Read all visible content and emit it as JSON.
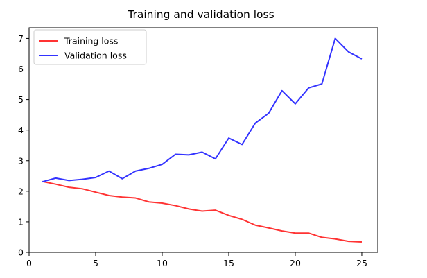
{
  "chart_data": {
    "type": "line",
    "title": "Training and validation loss",
    "xlabel": "",
    "ylabel": "",
    "xlim": [
      0,
      26.2
    ],
    "ylim": [
      0,
      7.35
    ],
    "xticks": [
      0,
      5,
      10,
      15,
      20,
      25
    ],
    "yticks": [
      0,
      1,
      2,
      3,
      4,
      5,
      6,
      7
    ],
    "grid": false,
    "legend_position": "top-left",
    "series": [
      {
        "name": "Training loss",
        "color": "#ff3333",
        "x": [
          1,
          2,
          3,
          4,
          5,
          6,
          7,
          8,
          9,
          10,
          11,
          12,
          13,
          14,
          15,
          16,
          17,
          18,
          19,
          20,
          21,
          22,
          23,
          24,
          25
        ],
        "y": [
          2.32,
          2.23,
          2.13,
          2.08,
          1.97,
          1.86,
          1.81,
          1.78,
          1.65,
          1.61,
          1.53,
          1.42,
          1.35,
          1.38,
          1.21,
          1.08,
          0.89,
          0.8,
          0.7,
          0.63,
          0.63,
          0.49,
          0.44,
          0.36,
          0.34
        ]
      },
      {
        "name": "Validation loss",
        "color": "#3333ff",
        "x": [
          1,
          2,
          3,
          4,
          5,
          6,
          7,
          8,
          9,
          10,
          11,
          12,
          13,
          14,
          15,
          16,
          17,
          18,
          19,
          20,
          21,
          22,
          23,
          24,
          25
        ],
        "y": [
          2.31,
          2.43,
          2.35,
          2.39,
          2.45,
          2.66,
          2.41,
          2.66,
          2.75,
          2.88,
          3.21,
          3.19,
          3.28,
          3.06,
          3.74,
          3.53,
          4.23,
          4.55,
          5.29,
          4.86,
          5.38,
          5.51,
          7.0,
          6.56,
          6.33
        ]
      }
    ]
  }
}
